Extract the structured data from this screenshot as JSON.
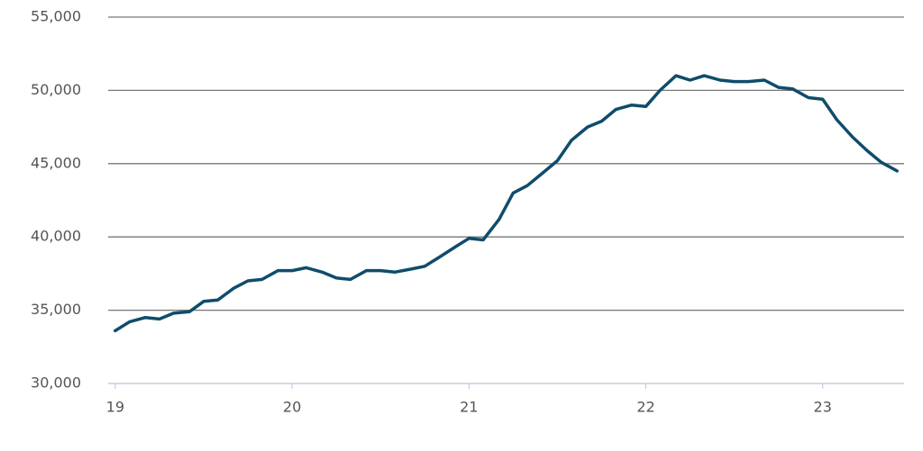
{
  "chart_data": {
    "type": "line",
    "x": [
      19.0,
      19.08,
      19.17,
      19.25,
      19.33,
      19.42,
      19.5,
      19.58,
      19.67,
      19.75,
      19.83,
      19.92,
      20.0,
      20.08,
      20.17,
      20.25,
      20.33,
      20.42,
      20.5,
      20.58,
      20.67,
      20.75,
      20.83,
      20.92,
      21.0,
      21.08,
      21.17,
      21.25,
      21.33,
      21.42,
      21.5,
      21.58,
      21.67,
      21.75,
      21.83,
      21.92,
      22.0,
      22.08,
      22.17,
      22.25,
      22.33,
      22.42,
      22.5,
      22.58,
      22.67,
      22.75,
      22.83,
      22.92,
      23.0,
      23.08,
      23.17,
      23.25,
      23.33,
      23.42
    ],
    "series": [
      {
        "color": "#0f4c6b",
        "values": [
          33600,
          34200,
          34500,
          34400,
          34800,
          34900,
          35600,
          35700,
          36500,
          37000,
          37100,
          37700,
          37700,
          37900,
          37600,
          37200,
          37100,
          37700,
          37700,
          37600,
          37800,
          38000,
          38600,
          39300,
          39900,
          39800,
          41200,
          43000,
          43500,
          44400,
          45200,
          46600,
          47500,
          47900,
          48700,
          49000,
          48900,
          50000,
          51000,
          50700,
          51000,
          50700,
          50600,
          50600,
          50700,
          50200,
          50100,
          49500,
          49400,
          48000,
          46800,
          45900,
          45100,
          44500
        ]
      }
    ],
    "xlim": [
      18.96,
      23.46
    ],
    "xticks": [
      19,
      20,
      21,
      22,
      23
    ],
    "ylim": [
      30000,
      55000
    ],
    "yticks": [
      {
        "value": 30000,
        "label": "30,000"
      },
      {
        "value": 35000,
        "label": "35,000"
      },
      {
        "value": 40000,
        "label": "40,000"
      },
      {
        "value": 45000,
        "label": "45,000"
      },
      {
        "value": 50000,
        "label": "50,000"
      },
      {
        "value": 55000,
        "label": "55,000"
      }
    ],
    "grid": true
  }
}
